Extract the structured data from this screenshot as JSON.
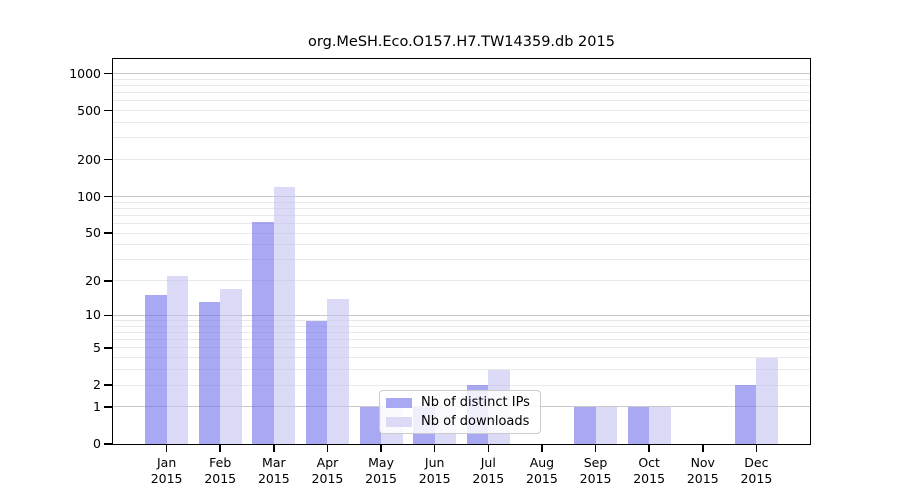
{
  "chart_data": {
    "type": "bar",
    "title": "org.MeSH.Eco.O157.H7.TW14359.db 2015",
    "y_scale": "log10(1+v)",
    "ylim": [
      0,
      1000
    ],
    "y_ticks": [
      0,
      1,
      2,
      5,
      10,
      20,
      50,
      100,
      200,
      500,
      1000
    ],
    "major_gridline_values": [
      1,
      10,
      100,
      1000
    ],
    "grid": true,
    "legend_position": "bottom-center",
    "categories": [
      "Jan 2015",
      "Feb 2015",
      "Mar 2015",
      "Apr 2015",
      "May 2015",
      "Jun 2015",
      "Jul 2015",
      "Aug 2015",
      "Sep 2015",
      "Oct 2015",
      "Nov 2015",
      "Dec 2015"
    ],
    "series": [
      {
        "name": "Nb of distinct IPs",
        "color": "#a9a9f3",
        "values": [
          15,
          13,
          62,
          9,
          1,
          1,
          2,
          0,
          1,
          1,
          0,
          2
        ]
      },
      {
        "name": "Nb of downloads",
        "color": "#dbdbf7",
        "values": [
          22,
          17,
          120,
          14,
          1,
          1,
          3,
          0,
          1,
          1,
          0,
          4
        ]
      }
    ],
    "colors": {
      "background": "#ffffff",
      "spine": "#000000",
      "gridline_minor": "#e9e9e9",
      "gridline_major": "#c9c9c9",
      "legend_border": "#cccccc",
      "text": "#000000"
    },
    "bar_alpha": 0.6
  }
}
